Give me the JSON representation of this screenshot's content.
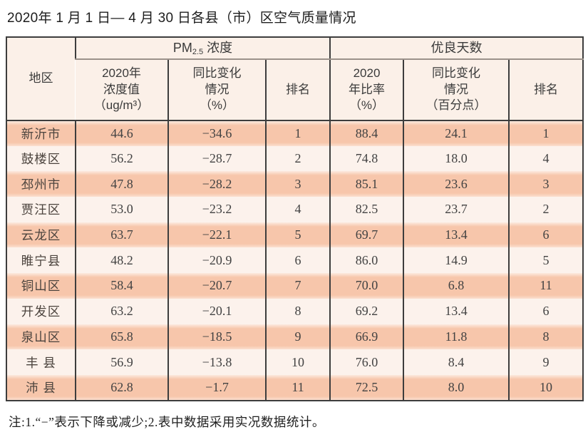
{
  "page_title": "2020年 1 月 1 日— 4 月 30 日各县（市）区空气质量情况",
  "table": {
    "header": {
      "region": "地区",
      "pm25_prefix": "PM",
      "pm25_sub": "2.5",
      "pm25_suffix": " 浓度",
      "good_days": "优良天数",
      "pm_value": "2020年\n浓度值\n（ug/m³）",
      "pm_change": "同比变化\n情况\n（%）",
      "pm_rank": "排名",
      "days_ratio": "2020\n年比率\n（%）",
      "days_change": "同比变化\n情况\n（百分点）",
      "days_rank": "排名"
    },
    "columns": [
      "region",
      "pm_value",
      "pm_change",
      "pm_rank",
      "days_ratio",
      "days_change",
      "days_rank"
    ],
    "rows": [
      {
        "region": "新沂市",
        "pm_value": "44.6",
        "pm_change": "−34.6",
        "pm_rank": "1",
        "days_ratio": "88.4",
        "days_change": "24.1",
        "days_rank": "1"
      },
      {
        "region": "鼓楼区",
        "pm_value": "56.2",
        "pm_change": "−28.7",
        "pm_rank": "2",
        "days_ratio": "74.8",
        "days_change": "18.0",
        "days_rank": "4"
      },
      {
        "region": "邳州市",
        "pm_value": "47.8",
        "pm_change": "−28.2",
        "pm_rank": "3",
        "days_ratio": "85.1",
        "days_change": "23.6",
        "days_rank": "3"
      },
      {
        "region": "贾汪区",
        "pm_value": "53.0",
        "pm_change": "−23.2",
        "pm_rank": "4",
        "days_ratio": "82.5",
        "days_change": "23.7",
        "days_rank": "2"
      },
      {
        "region": "云龙区",
        "pm_value": "63.7",
        "pm_change": "−22.1",
        "pm_rank": "5",
        "days_ratio": "69.7",
        "days_change": "13.4",
        "days_rank": "6"
      },
      {
        "region": "睢宁县",
        "pm_value": "48.2",
        "pm_change": "−20.9",
        "pm_rank": "6",
        "days_ratio": "86.0",
        "days_change": "14.9",
        "days_rank": "5"
      },
      {
        "region": "铜山区",
        "pm_value": "58.4",
        "pm_change": "−20.7",
        "pm_rank": "7",
        "days_ratio": "70.0",
        "days_change": "6.8",
        "days_rank": "11"
      },
      {
        "region": "开发区",
        "pm_value": "63.2",
        "pm_change": "−20.1",
        "pm_rank": "8",
        "days_ratio": "69.2",
        "days_change": "13.4",
        "days_rank": "6"
      },
      {
        "region": "泉山区",
        "pm_value": "65.8",
        "pm_change": "−18.5",
        "pm_rank": "9",
        "days_ratio": "66.9",
        "days_change": "11.8",
        "days_rank": "8"
      },
      {
        "region": "丰 县",
        "pm_value": "56.9",
        "pm_change": "−13.8",
        "pm_rank": "10",
        "days_ratio": "76.0",
        "days_change": "8.4",
        "days_rank": "9"
      },
      {
        "region": "沛 县",
        "pm_value": "62.8",
        "pm_change": "−1.7",
        "pm_rank": "11",
        "days_ratio": "72.5",
        "days_change": "8.0",
        "days_rank": "10"
      }
    ]
  },
  "note": "注:1.“−”表示下降或减少;2.表中数据采用实况数据统计。",
  "colors": {
    "row_odd": "#f7c6ab",
    "row_even": "#fcf2ec",
    "header_bg": "#fbf0e8",
    "border_dark": "#3d3d3d",
    "border_gray": "#9b918a"
  }
}
